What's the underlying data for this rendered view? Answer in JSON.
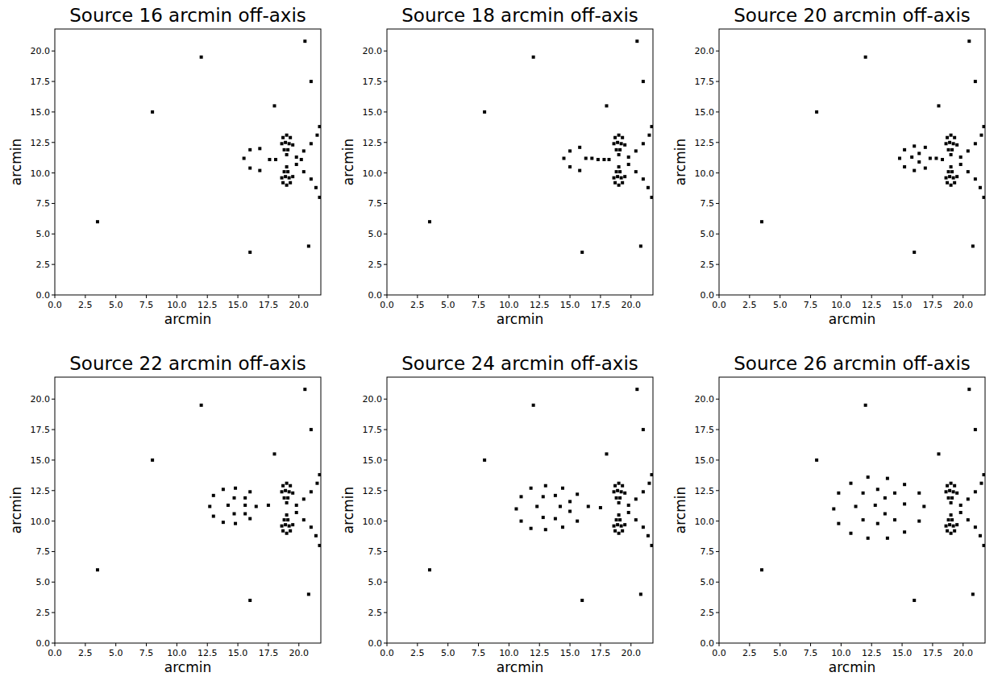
{
  "chart_data": [
    {
      "type": "scatter",
      "title": "Source 16 arcmin off-axis",
      "xlabel": "arcmin",
      "ylabel": "arcmin",
      "xlim": [
        0,
        21.8
      ],
      "ylim": [
        0,
        21.8
      ],
      "xticks": [
        {
          "value": 0,
          "label": "0.0"
        },
        2.5,
        {
          "value": 5,
          "label": "5.0"
        },
        7.5,
        {
          "value": 10,
          "label": "10.0"
        },
        12.5,
        {
          "value": 15,
          "label": "15.0"
        },
        17.5,
        {
          "value": 20,
          "label": "20.0"
        }
      ],
      "yticks": [
        {
          "value": 0,
          "label": "0.0"
        },
        2.5,
        {
          "value": 5,
          "label": "5.0"
        },
        7.5,
        {
          "value": 10,
          "label": "10.0"
        },
        12.5,
        {
          "value": 15,
          "label": "15.0"
        },
        17.5,
        {
          "value": 20,
          "label": "20.0"
        }
      ],
      "color": "#000000",
      "marker": "square",
      "x": [
        18.7,
        19.0,
        19.3,
        18.6,
        18.9,
        19.2,
        19.5,
        18.8,
        19.1,
        19.0,
        19.0,
        18.8,
        19.1,
        18.6,
        18.9,
        19.2,
        19.5,
        18.7,
        19.0,
        19.3,
        19.8,
        20.4,
        21.0,
        21.5,
        21.7,
        19.8,
        20.4,
        21.0,
        21.4,
        21.7,
        17.6,
        18.1,
        20.2,
        15.5,
        16.0,
        16.0,
        16.8,
        16.8,
        20.5,
        21.0,
        16.0,
        8.0,
        3.5,
        12.0,
        20.8,
        18.0
      ],
      "values": [
        12.9,
        13.1,
        12.9,
        12.4,
        12.5,
        12.4,
        12.3,
        11.9,
        11.9,
        11.5,
        10.5,
        10.1,
        10.1,
        9.6,
        9.7,
        9.6,
        9.7,
        9.2,
        9.0,
        9.2,
        11.3,
        11.8,
        12.4,
        13.1,
        13.8,
        10.7,
        10.1,
        9.5,
        8.8,
        8.0,
        11.1,
        11.1,
        11.1,
        11.2,
        11.9,
        10.4,
        12.0,
        10.2,
        20.8,
        17.5,
        3.5,
        15.0,
        6.0,
        19.5,
        4.0,
        15.5
      ]
    },
    {
      "type": "scatter",
      "title": "Source 18 arcmin off-axis",
      "xlabel": "arcmin",
      "ylabel": "arcmin",
      "xlim": [
        0,
        21.8
      ],
      "ylim": [
        0,
        21.8
      ],
      "xticks": [
        {
          "value": 0,
          "label": "0.0"
        },
        2.5,
        {
          "value": 5,
          "label": "5.0"
        },
        7.5,
        {
          "value": 10,
          "label": "10.0"
        },
        12.5,
        {
          "value": 15,
          "label": "15.0"
        },
        17.5,
        {
          "value": 20,
          "label": "20.0"
        }
      ],
      "yticks": [
        {
          "value": 0,
          "label": "0.0"
        },
        2.5,
        {
          "value": 5,
          "label": "5.0"
        },
        7.5,
        {
          "value": 10,
          "label": "10.0"
        },
        12.5,
        {
          "value": 15,
          "label": "15.0"
        },
        17.5,
        {
          "value": 20,
          "label": "20.0"
        }
      ],
      "color": "#000000",
      "marker": "square",
      "x": [
        18.7,
        19.0,
        19.3,
        18.6,
        18.9,
        19.2,
        19.5,
        18.8,
        19.1,
        19.0,
        19.0,
        18.8,
        19.1,
        18.6,
        18.9,
        19.2,
        19.5,
        18.7,
        19.0,
        19.3,
        19.8,
        20.4,
        21.0,
        21.5,
        21.7,
        19.8,
        20.4,
        21.0,
        21.4,
        21.7,
        16.3,
        16.8,
        17.3,
        17.8,
        18.2,
        14.5,
        15.0,
        15.0,
        15.8,
        15.8,
        20.5,
        21.0,
        16.0,
        8.0,
        3.5,
        12.0,
        20.8,
        18.0
      ],
      "values": [
        12.9,
        13.1,
        12.9,
        12.4,
        12.5,
        12.4,
        12.3,
        11.9,
        11.9,
        11.5,
        10.5,
        10.1,
        10.1,
        9.6,
        9.7,
        9.6,
        9.7,
        9.2,
        9.0,
        9.2,
        11.3,
        11.8,
        12.4,
        13.1,
        13.8,
        10.7,
        10.1,
        9.5,
        8.8,
        8.0,
        11.2,
        11.2,
        11.1,
        11.1,
        11.1,
        11.2,
        11.8,
        10.5,
        12.1,
        10.2,
        20.8,
        17.5,
        3.5,
        15.0,
        6.0,
        19.5,
        4.0,
        15.5
      ]
    },
    {
      "type": "scatter",
      "title": "Source 20 arcmin off-axis",
      "xlabel": "arcmin",
      "ylabel": "arcmin",
      "xlim": [
        0,
        21.8
      ],
      "ylim": [
        0,
        21.8
      ],
      "xticks": [
        {
          "value": 0,
          "label": "0.0"
        },
        2.5,
        {
          "value": 5,
          "label": "5.0"
        },
        7.5,
        {
          "value": 10,
          "label": "10.0"
        },
        12.5,
        {
          "value": 15,
          "label": "15.0"
        },
        17.5,
        {
          "value": 20,
          "label": "20.0"
        }
      ],
      "yticks": [
        {
          "value": 0,
          "label": "0.0"
        },
        2.5,
        {
          "value": 5,
          "label": "5.0"
        },
        7.5,
        {
          "value": 10,
          "label": "10.0"
        },
        12.5,
        {
          "value": 15,
          "label": "15.0"
        },
        17.5,
        {
          "value": 20,
          "label": "20.0"
        }
      ],
      "color": "#000000",
      "marker": "square",
      "x": [
        18.7,
        19.0,
        19.3,
        18.6,
        18.9,
        19.2,
        19.5,
        18.8,
        19.1,
        19.0,
        19.0,
        18.8,
        19.1,
        18.6,
        18.9,
        19.2,
        19.5,
        18.7,
        19.0,
        19.3,
        19.8,
        20.4,
        21.0,
        21.5,
        21.7,
        19.8,
        20.4,
        21.0,
        21.4,
        21.7,
        14.8,
        15.2,
        15.2,
        16.0,
        16.0,
        16.9,
        16.9,
        15.8,
        16.4,
        16.4,
        17.3,
        17.8,
        18.3,
        20.5,
        21.0,
        16.0,
        8.0,
        3.5,
        12.0,
        20.8,
        18.0
      ],
      "values": [
        12.9,
        13.1,
        12.9,
        12.4,
        12.5,
        12.4,
        12.3,
        11.9,
        11.9,
        11.5,
        10.5,
        10.1,
        10.1,
        9.6,
        9.7,
        9.6,
        9.7,
        9.2,
        9.0,
        9.2,
        11.3,
        11.8,
        12.4,
        13.1,
        13.8,
        10.7,
        10.1,
        9.5,
        8.8,
        8.0,
        11.2,
        11.9,
        10.5,
        12.2,
        10.2,
        12.1,
        10.4,
        11.3,
        11.6,
        10.9,
        11.2,
        11.2,
        11.1,
        20.8,
        17.5,
        3.5,
        15.0,
        6.0,
        19.5,
        4.0,
        15.5
      ]
    },
    {
      "type": "scatter",
      "title": "Source 22 arcmin off-axis",
      "xlabel": "arcmin",
      "ylabel": "arcmin",
      "xlim": [
        0,
        21.8
      ],
      "ylim": [
        0,
        21.8
      ],
      "xticks": [
        {
          "value": 0,
          "label": "0.0"
        },
        2.5,
        {
          "value": 5,
          "label": "5.0"
        },
        7.5,
        {
          "value": 10,
          "label": "10.0"
        },
        12.5,
        {
          "value": 15,
          "label": "15.0"
        },
        17.5,
        {
          "value": 20,
          "label": "20.0"
        }
      ],
      "yticks": [
        {
          "value": 0,
          "label": "0.0"
        },
        2.5,
        {
          "value": 5,
          "label": "5.0"
        },
        7.5,
        {
          "value": 10,
          "label": "10.0"
        },
        12.5,
        {
          "value": 15,
          "label": "15.0"
        },
        17.5,
        {
          "value": 20,
          "label": "20.0"
        }
      ],
      "color": "#000000",
      "marker": "square",
      "x": [
        18.7,
        19.0,
        19.3,
        18.6,
        18.9,
        19.2,
        19.5,
        18.8,
        19.1,
        19.0,
        19.0,
        18.8,
        19.1,
        18.6,
        18.9,
        19.2,
        19.5,
        18.7,
        19.0,
        19.3,
        19.8,
        20.4,
        21.0,
        21.5,
        21.7,
        19.8,
        20.4,
        21.0,
        21.4,
        21.7,
        12.7,
        13.0,
        13.0,
        13.8,
        13.8,
        14.8,
        14.8,
        16.0,
        16.0,
        14.2,
        14.7,
        14.7,
        15.6,
        15.6,
        15.6,
        16.5,
        17.5,
        20.5,
        21.0,
        16.0,
        8.0,
        3.5,
        12.0,
        20.8,
        18.0
      ],
      "values": [
        12.9,
        13.1,
        12.9,
        12.4,
        12.5,
        12.4,
        12.3,
        11.9,
        11.9,
        11.5,
        10.5,
        10.1,
        10.1,
        9.6,
        9.7,
        9.6,
        9.7,
        9.2,
        9.0,
        9.2,
        11.3,
        11.8,
        12.4,
        13.1,
        13.8,
        10.7,
        10.1,
        9.5,
        8.8,
        8.0,
        11.2,
        12.1,
        10.4,
        12.6,
        9.9,
        12.7,
        9.8,
        12.4,
        10.2,
        11.3,
        11.9,
        10.6,
        11.9,
        10.6,
        11.3,
        11.2,
        11.3,
        20.8,
        17.5,
        3.5,
        15.0,
        6.0,
        19.5,
        4.0,
        15.5
      ]
    },
    {
      "type": "scatter",
      "title": "Source 24 arcmin off-axis",
      "xlabel": "arcmin",
      "ylabel": "arcmin",
      "xlim": [
        0,
        21.8
      ],
      "ylim": [
        0,
        21.8
      ],
      "xticks": [
        {
          "value": 0,
          "label": "0.0"
        },
        2.5,
        {
          "value": 5,
          "label": "5.0"
        },
        7.5,
        {
          "value": 10,
          "label": "10.0"
        },
        12.5,
        {
          "value": 15,
          "label": "15.0"
        },
        17.5,
        {
          "value": 20,
          "label": "20.0"
        }
      ],
      "yticks": [
        {
          "value": 0,
          "label": "0.0"
        },
        2.5,
        {
          "value": 5,
          "label": "5.0"
        },
        7.5,
        {
          "value": 10,
          "label": "10.0"
        },
        12.5,
        {
          "value": 15,
          "label": "15.0"
        },
        17.5,
        {
          "value": 20,
          "label": "20.0"
        }
      ],
      "color": "#000000",
      "marker": "square",
      "x": [
        18.7,
        19.0,
        19.3,
        18.6,
        18.9,
        19.2,
        19.5,
        18.8,
        19.1,
        19.0,
        19.0,
        18.8,
        19.1,
        18.6,
        18.9,
        19.2,
        19.5,
        18.7,
        19.0,
        19.3,
        19.8,
        20.4,
        21.0,
        21.5,
        21.7,
        19.8,
        20.4,
        21.0,
        21.4,
        21.7,
        10.6,
        11.0,
        11.0,
        11.8,
        11.8,
        13.0,
        13.0,
        14.4,
        14.4,
        15.6,
        15.6,
        12.3,
        12.8,
        12.8,
        13.8,
        13.8,
        14.2,
        15.0,
        15.0,
        16.5,
        17.5,
        20.5,
        21.0,
        16.0,
        8.0,
        3.5,
        12.0,
        20.8,
        18.0
      ],
      "values": [
        12.9,
        13.1,
        12.9,
        12.4,
        12.5,
        12.4,
        12.3,
        11.9,
        11.9,
        11.5,
        10.5,
        10.1,
        10.1,
        9.6,
        9.7,
        9.6,
        9.7,
        9.2,
        9.0,
        9.2,
        11.3,
        11.8,
        12.4,
        13.1,
        13.8,
        10.7,
        10.1,
        9.5,
        8.8,
        8.0,
        11.0,
        12.0,
        10.0,
        12.7,
        9.4,
        12.9,
        9.3,
        12.7,
        9.5,
        12.2,
        10.0,
        11.2,
        12.0,
        10.3,
        12.1,
        10.2,
        11.2,
        11.6,
        10.8,
        11.2,
        11.1,
        20.8,
        17.5,
        3.5,
        15.0,
        6.0,
        19.5,
        4.0,
        15.5
      ]
    },
    {
      "type": "scatter",
      "title": "Source 26 arcmin off-axis",
      "xlabel": "arcmin",
      "ylabel": "arcmin",
      "xlim": [
        0,
        21.8
      ],
      "ylim": [
        0,
        21.8
      ],
      "xticks": [
        {
          "value": 0,
          "label": "0.0"
        },
        2.5,
        {
          "value": 5,
          "label": "5.0"
        },
        7.5,
        {
          "value": 10,
          "label": "10.0"
        },
        12.5,
        {
          "value": 15,
          "label": "15.0"
        },
        17.5,
        {
          "value": 20,
          "label": "20.0"
        }
      ],
      "yticks": [
        {
          "value": 0,
          "label": "0.0"
        },
        2.5,
        {
          "value": 5,
          "label": "5.0"
        },
        7.5,
        {
          "value": 10,
          "label": "10.0"
        },
        12.5,
        {
          "value": 15,
          "label": "15.0"
        },
        17.5,
        {
          "value": 20,
          "label": "20.0"
        }
      ],
      "color": "#000000",
      "marker": "square",
      "x": [
        18.7,
        19.0,
        19.3,
        18.6,
        18.9,
        19.2,
        19.5,
        18.8,
        19.1,
        19.0,
        19.0,
        18.8,
        19.1,
        18.6,
        18.9,
        19.2,
        19.5,
        18.7,
        19.0,
        19.3,
        19.8,
        20.4,
        21.0,
        21.5,
        21.7,
        19.8,
        20.4,
        21.0,
        21.4,
        21.7,
        9.4,
        9.8,
        9.8,
        10.8,
        10.8,
        12.2,
        12.2,
        13.8,
        13.8,
        15.2,
        15.2,
        16.4,
        16.4,
        11.2,
        11.8,
        11.8,
        13.0,
        13.0,
        14.4,
        14.4,
        12.8,
        13.6,
        13.6,
        15.2,
        16.8,
        20.5,
        21.0,
        16.0,
        8.0,
        3.5,
        12.0,
        20.8,
        18.0
      ],
      "values": [
        12.9,
        13.1,
        12.9,
        12.4,
        12.5,
        12.4,
        12.3,
        11.9,
        11.9,
        11.5,
        10.5,
        10.1,
        10.1,
        9.6,
        9.7,
        9.6,
        9.7,
        9.2,
        9.0,
        9.2,
        11.3,
        11.8,
        12.4,
        13.1,
        13.8,
        10.7,
        10.1,
        9.5,
        8.8,
        8.0,
        11.0,
        12.3,
        9.8,
        13.1,
        9.0,
        13.6,
        8.6,
        13.5,
        8.6,
        13.0,
        9.1,
        12.3,
        10.0,
        11.2,
        12.3,
        10.1,
        12.6,
        9.8,
        12.3,
        10.1,
        11.3,
        11.9,
        10.6,
        11.4,
        11.2,
        20.8,
        17.5,
        3.5,
        15.0,
        6.0,
        19.5,
        4.0,
        15.5
      ]
    }
  ]
}
